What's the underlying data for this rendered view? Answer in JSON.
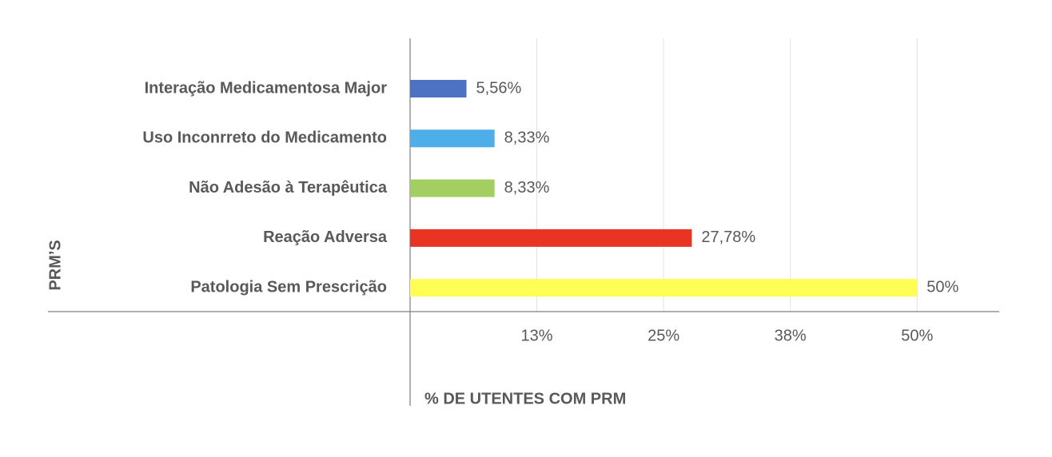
{
  "chart_data": {
    "type": "bar",
    "orientation": "horizontal",
    "x_label": "% DE UTENTES COM PRM",
    "y_label": "PRM’S",
    "categories": [
      "Interação Medicamentosa Major",
      "Uso Inconrreto do Medicamento",
      "Não Adesão à Terapêutica",
      "Reação Adversa",
      "Patologia Sem Prescrição"
    ],
    "values": [
      5.56,
      8.33,
      8.33,
      27.78,
      50
    ],
    "value_labels": [
      "5,56%",
      "8,33%",
      "8,33%",
      "27,78%",
      "50%"
    ],
    "colors": [
      "#4e72c3",
      "#4daeea",
      "#a3cf62",
      "#e93323",
      "#fffe55"
    ],
    "xlim": [
      0,
      58.1
    ],
    "xticks": [
      {
        "value": 12.5,
        "label": "13%"
      },
      {
        "value": 25,
        "label": "25%"
      },
      {
        "value": 37.5,
        "label": "38%"
      },
      {
        "value": 50,
        "label": "50%"
      }
    ],
    "grid": true
  }
}
